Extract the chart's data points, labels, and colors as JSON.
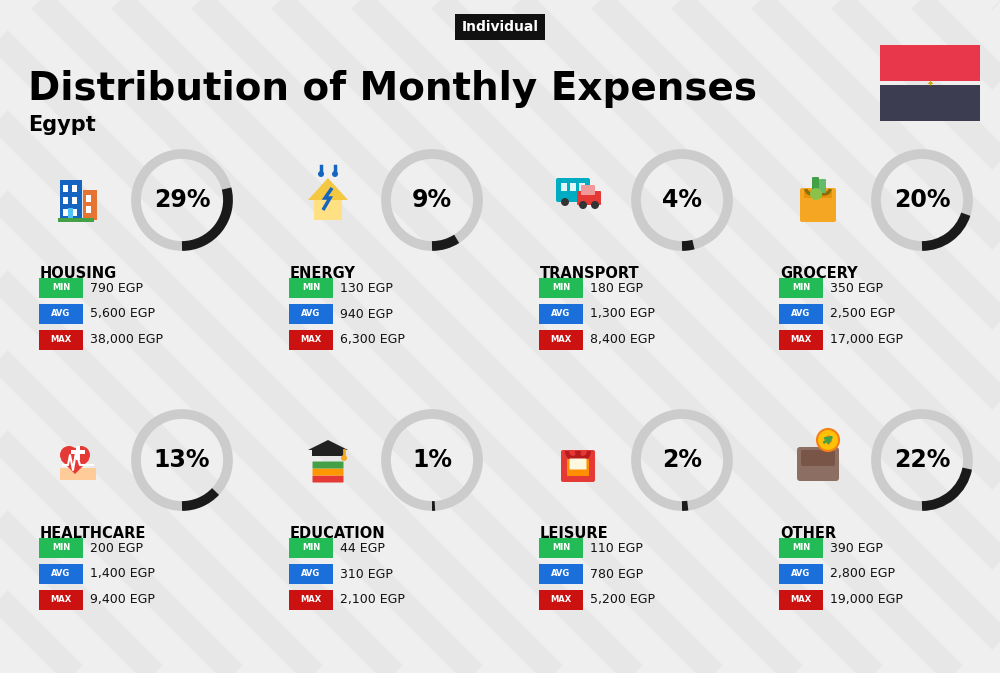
{
  "title": "Distribution of Monthly Expenses",
  "subtitle": "Egypt",
  "tag": "Individual",
  "background_color": "#efefef",
  "categories": [
    {
      "name": "HOUSING",
      "percent": 29,
      "min": "790 EGP",
      "avg": "5,600 EGP",
      "max": "38,000 EGP",
      "row": 0,
      "col": 0
    },
    {
      "name": "ENERGY",
      "percent": 9,
      "min": "130 EGP",
      "avg": "940 EGP",
      "max": "6,300 EGP",
      "row": 0,
      "col": 1
    },
    {
      "name": "TRANSPORT",
      "percent": 4,
      "min": "180 EGP",
      "avg": "1,300 EGP",
      "max": "8,400 EGP",
      "row": 0,
      "col": 2
    },
    {
      "name": "GROCERY",
      "percent": 20,
      "min": "350 EGP",
      "avg": "2,500 EGP",
      "max": "17,000 EGP",
      "row": 0,
      "col": 3
    },
    {
      "name": "HEALTHCARE",
      "percent": 13,
      "min": "200 EGP",
      "avg": "1,400 EGP",
      "max": "9,400 EGP",
      "row": 1,
      "col": 0
    },
    {
      "name": "EDUCATION",
      "percent": 1,
      "min": "44 EGP",
      "avg": "310 EGP",
      "max": "2,100 EGP",
      "row": 1,
      "col": 1
    },
    {
      "name": "LEISURE",
      "percent": 2,
      "min": "110 EGP",
      "avg": "780 EGP",
      "max": "5,200 EGP",
      "row": 1,
      "col": 2
    },
    {
      "name": "OTHER",
      "percent": 22,
      "min": "390 EGP",
      "avg": "2,800 EGP",
      "max": "19,000 EGP",
      "row": 1,
      "col": 3
    }
  ],
  "min_color": "#22bb55",
  "avg_color": "#1a6fdb",
  "max_color": "#cc1111",
  "arc_dark": "#1a1a1a",
  "arc_light": "#cccccc",
  "stripe_color": "#e4e4e4",
  "flag_red": "#e8374a",
  "flag_dark": "#3d3d52",
  "flag_gold": "#c8a000",
  "tag_bg": "#111111",
  "tag_fg": "#ffffff",
  "title_fontsize": 28,
  "subtitle_fontsize": 15,
  "tag_fontsize": 10,
  "percent_fontsize": 17,
  "cat_name_fontsize": 10.5,
  "badge_label_fontsize": 6,
  "badge_value_fontsize": 9
}
